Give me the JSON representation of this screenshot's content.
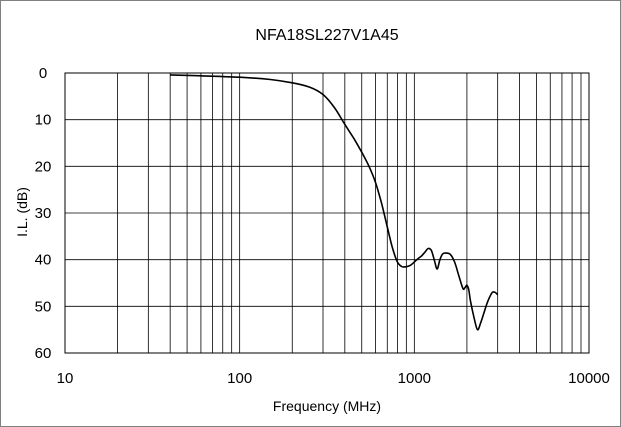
{
  "chart_data": {
    "type": "line",
    "title": "NFA18SL227V1A45",
    "xlabel": "Frequency (MHz)",
    "ylabel": "I.L. (dB)",
    "x_scale": "log",
    "xlim": [
      10,
      10000
    ],
    "ylim": [
      0,
      60
    ],
    "y_inverted": true,
    "x_ticks": [
      "10",
      "100",
      "1000",
      "10000"
    ],
    "y_ticks": [
      "0",
      "10",
      "20",
      "30",
      "40",
      "50",
      "60"
    ],
    "grid": true,
    "legend": "none",
    "colors": {
      "line": "#000000",
      "grid": "#000000",
      "frame": "#808080"
    },
    "series": [
      {
        "x": [
          40,
          60,
          100,
          150,
          200,
          250,
          300,
          350,
          400,
          450,
          500,
          550,
          600,
          650,
          700,
          750,
          800,
          850,
          900,
          950,
          1000,
          1050,
          1100,
          1150,
          1200,
          1250,
          1300,
          1350,
          1400,
          1450,
          1500,
          1600,
          1700,
          1800,
          1900,
          1950,
          2000,
          2050,
          2100,
          2200,
          2300,
          2400,
          2500,
          2600,
          2700,
          2800,
          2900,
          3000
        ],
        "y": [
          0.4,
          0.6,
          0.9,
          1.4,
          2.1,
          3.0,
          4.6,
          7.5,
          11.0,
          14.0,
          17.0,
          20.0,
          23.5,
          28.0,
          33.0,
          37.5,
          40.5,
          41.5,
          41.5,
          41.2,
          40.5,
          39.8,
          39.2,
          38.4,
          37.6,
          38.0,
          40.0,
          42.0,
          40.0,
          38.8,
          38.6,
          38.8,
          40.5,
          43.5,
          46.2,
          46.0,
          45.5,
          46.5,
          49.0,
          52.5,
          55.0,
          53.5,
          51.5,
          49.5,
          48.0,
          47.0,
          47.0,
          47.5
        ]
      }
    ]
  }
}
